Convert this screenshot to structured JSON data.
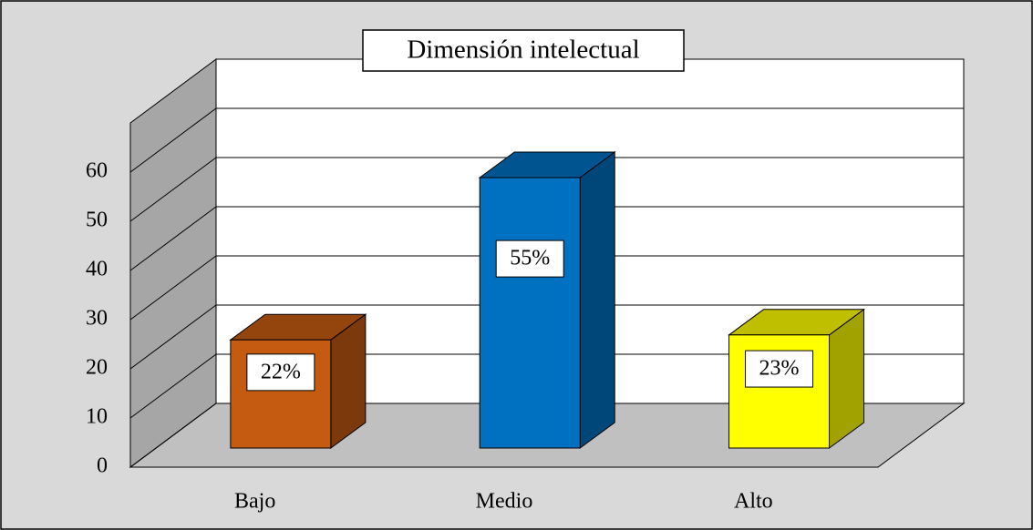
{
  "chart_data": {
    "type": "bar3d",
    "title": "Dimensión intelectual",
    "categories": [
      "Bajo",
      "Medio",
      "Alto"
    ],
    "values": [
      22,
      55,
      23
    ],
    "value_labels": [
      "22%",
      "55%",
      "23%"
    ],
    "colors": [
      "#c55a11",
      "#0070c0",
      "#ffff00"
    ],
    "ylim": [
      0,
      70
    ],
    "yticks": [
      0,
      10,
      20,
      30,
      40,
      50,
      60
    ],
    "grid": true
  }
}
